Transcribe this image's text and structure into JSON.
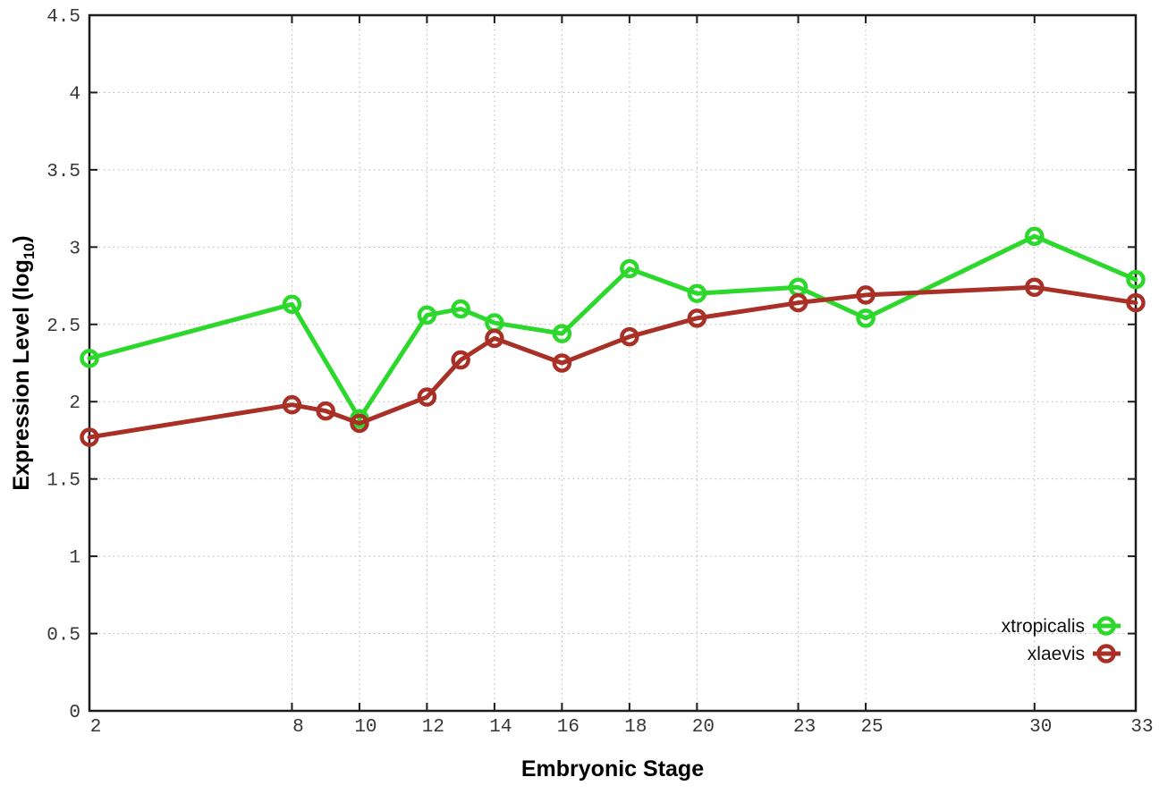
{
  "chart_data": {
    "type": "line",
    "title": "",
    "xlabel": "Embryonic Stage",
    "ylabel": "Expression Level (log10)",
    "ylabel_rich": {
      "prefix": "Expression Level (log",
      "subscript": "10",
      "suffix": ")"
    },
    "xlim": [
      2,
      33
    ],
    "ylim": [
      0,
      4.5
    ],
    "xticks": [
      2,
      8,
      10,
      12,
      14,
      16,
      18,
      20,
      23,
      25,
      30,
      33
    ],
    "yticks": [
      0,
      0.5,
      1,
      1.5,
      2,
      2.5,
      3,
      3.5,
      4,
      4.5
    ],
    "ytick_labels": [
      "0",
      "0.5",
      "1",
      "1.5",
      "2",
      "2.5",
      "3",
      "3.5",
      "4",
      "4.5"
    ],
    "grid": true,
    "legend_position": "bottom-right",
    "marker_style": "open-circle",
    "series": [
      {
        "name": "xtropicalis",
        "color": "#2bd82b",
        "points": [
          [
            2,
            2.28
          ],
          [
            8,
            2.63
          ],
          [
            10,
            1.89
          ],
          [
            12,
            2.56
          ],
          [
            13,
            2.6
          ],
          [
            14,
            2.51
          ],
          [
            16,
            2.44
          ],
          [
            18,
            2.86
          ],
          [
            20,
            2.7
          ],
          [
            23,
            2.74
          ],
          [
            25,
            2.54
          ],
          [
            30,
            3.07
          ],
          [
            33,
            2.79
          ]
        ]
      },
      {
        "name": "xlaevis",
        "color": "#a93026",
        "points": [
          [
            2,
            1.77
          ],
          [
            8,
            1.98
          ],
          [
            9,
            1.94
          ],
          [
            10,
            1.86
          ],
          [
            12,
            2.03
          ],
          [
            13,
            2.27
          ],
          [
            14,
            2.41
          ],
          [
            16,
            2.25
          ],
          [
            18,
            2.42
          ],
          [
            20,
            2.54
          ],
          [
            23,
            2.64
          ],
          [
            25,
            2.69
          ],
          [
            30,
            2.74
          ],
          [
            33,
            2.64
          ]
        ]
      }
    ]
  },
  "colors": {
    "background": "#ffffff",
    "grid": "#b3b3b3",
    "border": "#1c1c1c",
    "tick_text": "#363636",
    "legend_text": "#0d0d0d"
  }
}
